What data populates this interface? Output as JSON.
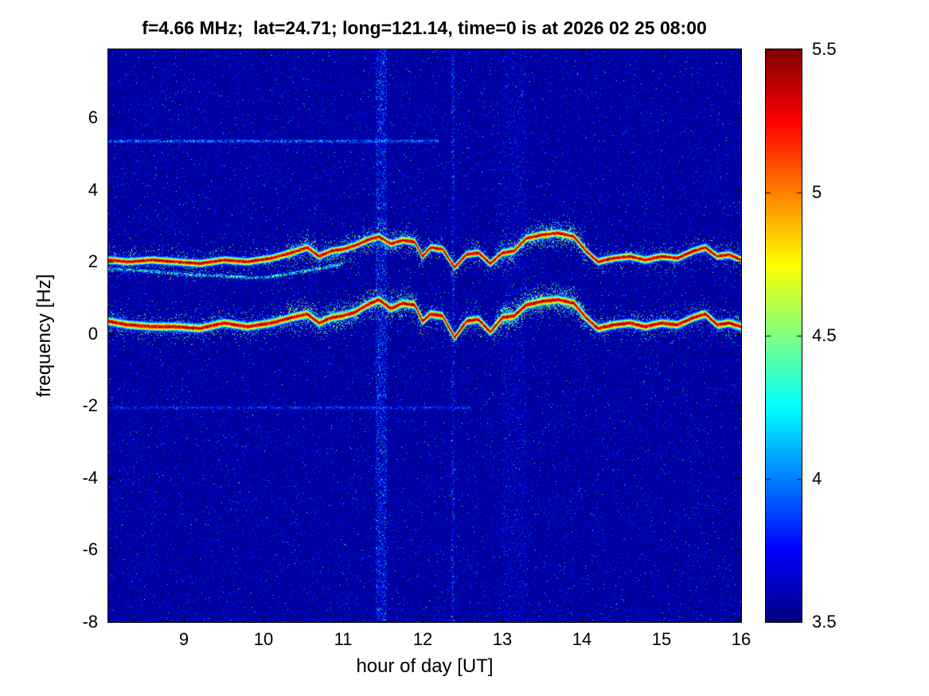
{
  "figure": {
    "background": "#ffffff",
    "text_color": "#000000",
    "axes_color": "#000000"
  },
  "chart_data": {
    "type": "heatmap",
    "title": "f=4.66 MHz;  lat=24.71; long=121.14, time=0 is at 2026 02 25 08:00",
    "xlabel": "hour of day [UT]",
    "ylabel": "frequency [Hz]",
    "x_range": [
      8.05,
      16.0
    ],
    "y_range": [
      -8.0,
      7.9
    ],
    "x_ticks": [
      9,
      10,
      11,
      12,
      13,
      14,
      15,
      16
    ],
    "y_ticks": [
      -8,
      -6,
      -4,
      -2,
      0,
      2,
      4,
      6
    ],
    "colormap": "jet",
    "colorbar": {
      "min": 3.5,
      "max": 5.5,
      "ticks": [
        3.5,
        4,
        4.5,
        5,
        5.5
      ]
    },
    "noise": {
      "background": 3.5,
      "mean": 0.075,
      "spike_prob": 0.004,
      "spike_max": 1.0
    },
    "trace_x": [
      8.05,
      8.3,
      8.6,
      8.9,
      9.2,
      9.5,
      9.8,
      10.1,
      10.35,
      10.55,
      10.7,
      10.85,
      11.0,
      11.15,
      11.3,
      11.45,
      11.6,
      11.75,
      11.9,
      12.0,
      12.1,
      12.25,
      12.4,
      12.55,
      12.7,
      12.85,
      13.0,
      13.15,
      13.3,
      13.5,
      13.7,
      13.9,
      14.05,
      14.2,
      14.4,
      14.6,
      14.8,
      15.0,
      15.2,
      15.4,
      15.55,
      15.7,
      15.85,
      16.0
    ],
    "traces": [
      {
        "name": "upper-doppler-trace",
        "y": [
          2.05,
          2.0,
          2.05,
          2.0,
          1.95,
          2.05,
          2.0,
          2.1,
          2.25,
          2.4,
          2.15,
          2.3,
          2.35,
          2.45,
          2.6,
          2.7,
          2.5,
          2.6,
          2.55,
          2.15,
          2.4,
          2.35,
          1.85,
          2.2,
          2.25,
          1.95,
          2.25,
          2.3,
          2.65,
          2.75,
          2.8,
          2.7,
          2.3,
          2.0,
          2.1,
          2.15,
          2.05,
          2.15,
          2.1,
          2.3,
          2.4,
          2.15,
          2.2,
          2.05
        ],
        "peak": 5.4,
        "core_width_hz": 0.09,
        "halo_density": 0.16,
        "halo_width_hz": 0.28
      },
      {
        "name": "lower-doppler-trace",
        "y": [
          0.35,
          0.25,
          0.2,
          0.2,
          0.15,
          0.3,
          0.2,
          0.3,
          0.45,
          0.55,
          0.3,
          0.45,
          0.5,
          0.6,
          0.8,
          0.95,
          0.7,
          0.85,
          0.8,
          0.35,
          0.55,
          0.5,
          -0.1,
          0.35,
          0.4,
          0.05,
          0.45,
          0.5,
          0.8,
          0.9,
          0.95,
          0.85,
          0.45,
          0.15,
          0.25,
          0.3,
          0.2,
          0.3,
          0.25,
          0.45,
          0.55,
          0.25,
          0.3,
          0.2
        ],
        "peak": 5.4,
        "core_width_hz": 0.1,
        "halo_density": 0.2,
        "halo_width_hz": 0.3
      },
      {
        "name": "secondary-faint-trace",
        "x": [
          8.05,
          8.5,
          9.0,
          9.5,
          10.0,
          10.4,
          10.8,
          11.0
        ],
        "y": [
          1.8,
          1.75,
          1.65,
          1.6,
          1.55,
          1.7,
          1.85,
          1.95
        ],
        "peak": 4.4,
        "core_width_hz": 0.05,
        "halo_density": 0.05,
        "halo_width_hz": 0.12,
        "gap_prob": 0.45
      }
    ],
    "halo_regions": [
      {
        "x0": 10.3,
        "x1": 12.0,
        "mult": 2.2
      },
      {
        "x0": 12.9,
        "x1": 14.05,
        "mult": 2.8
      }
    ],
    "vertical_stripes": [
      {
        "x": 11.48,
        "width": 0.14,
        "boost": 2.6
      },
      {
        "x": 12.38,
        "width": 0.05,
        "boost": 2.2
      },
      {
        "x": 13.15,
        "width": 0.3,
        "boost": 1.35
      }
    ],
    "faint_lines": [
      {
        "y": 5.35,
        "x0": 8.05,
        "x1": 12.2,
        "peak": 4.15,
        "prob": 0.45
      },
      {
        "y": -2.05,
        "x0": 8.05,
        "x1": 12.6,
        "peak": 4.0,
        "prob": 0.35
      }
    ]
  }
}
